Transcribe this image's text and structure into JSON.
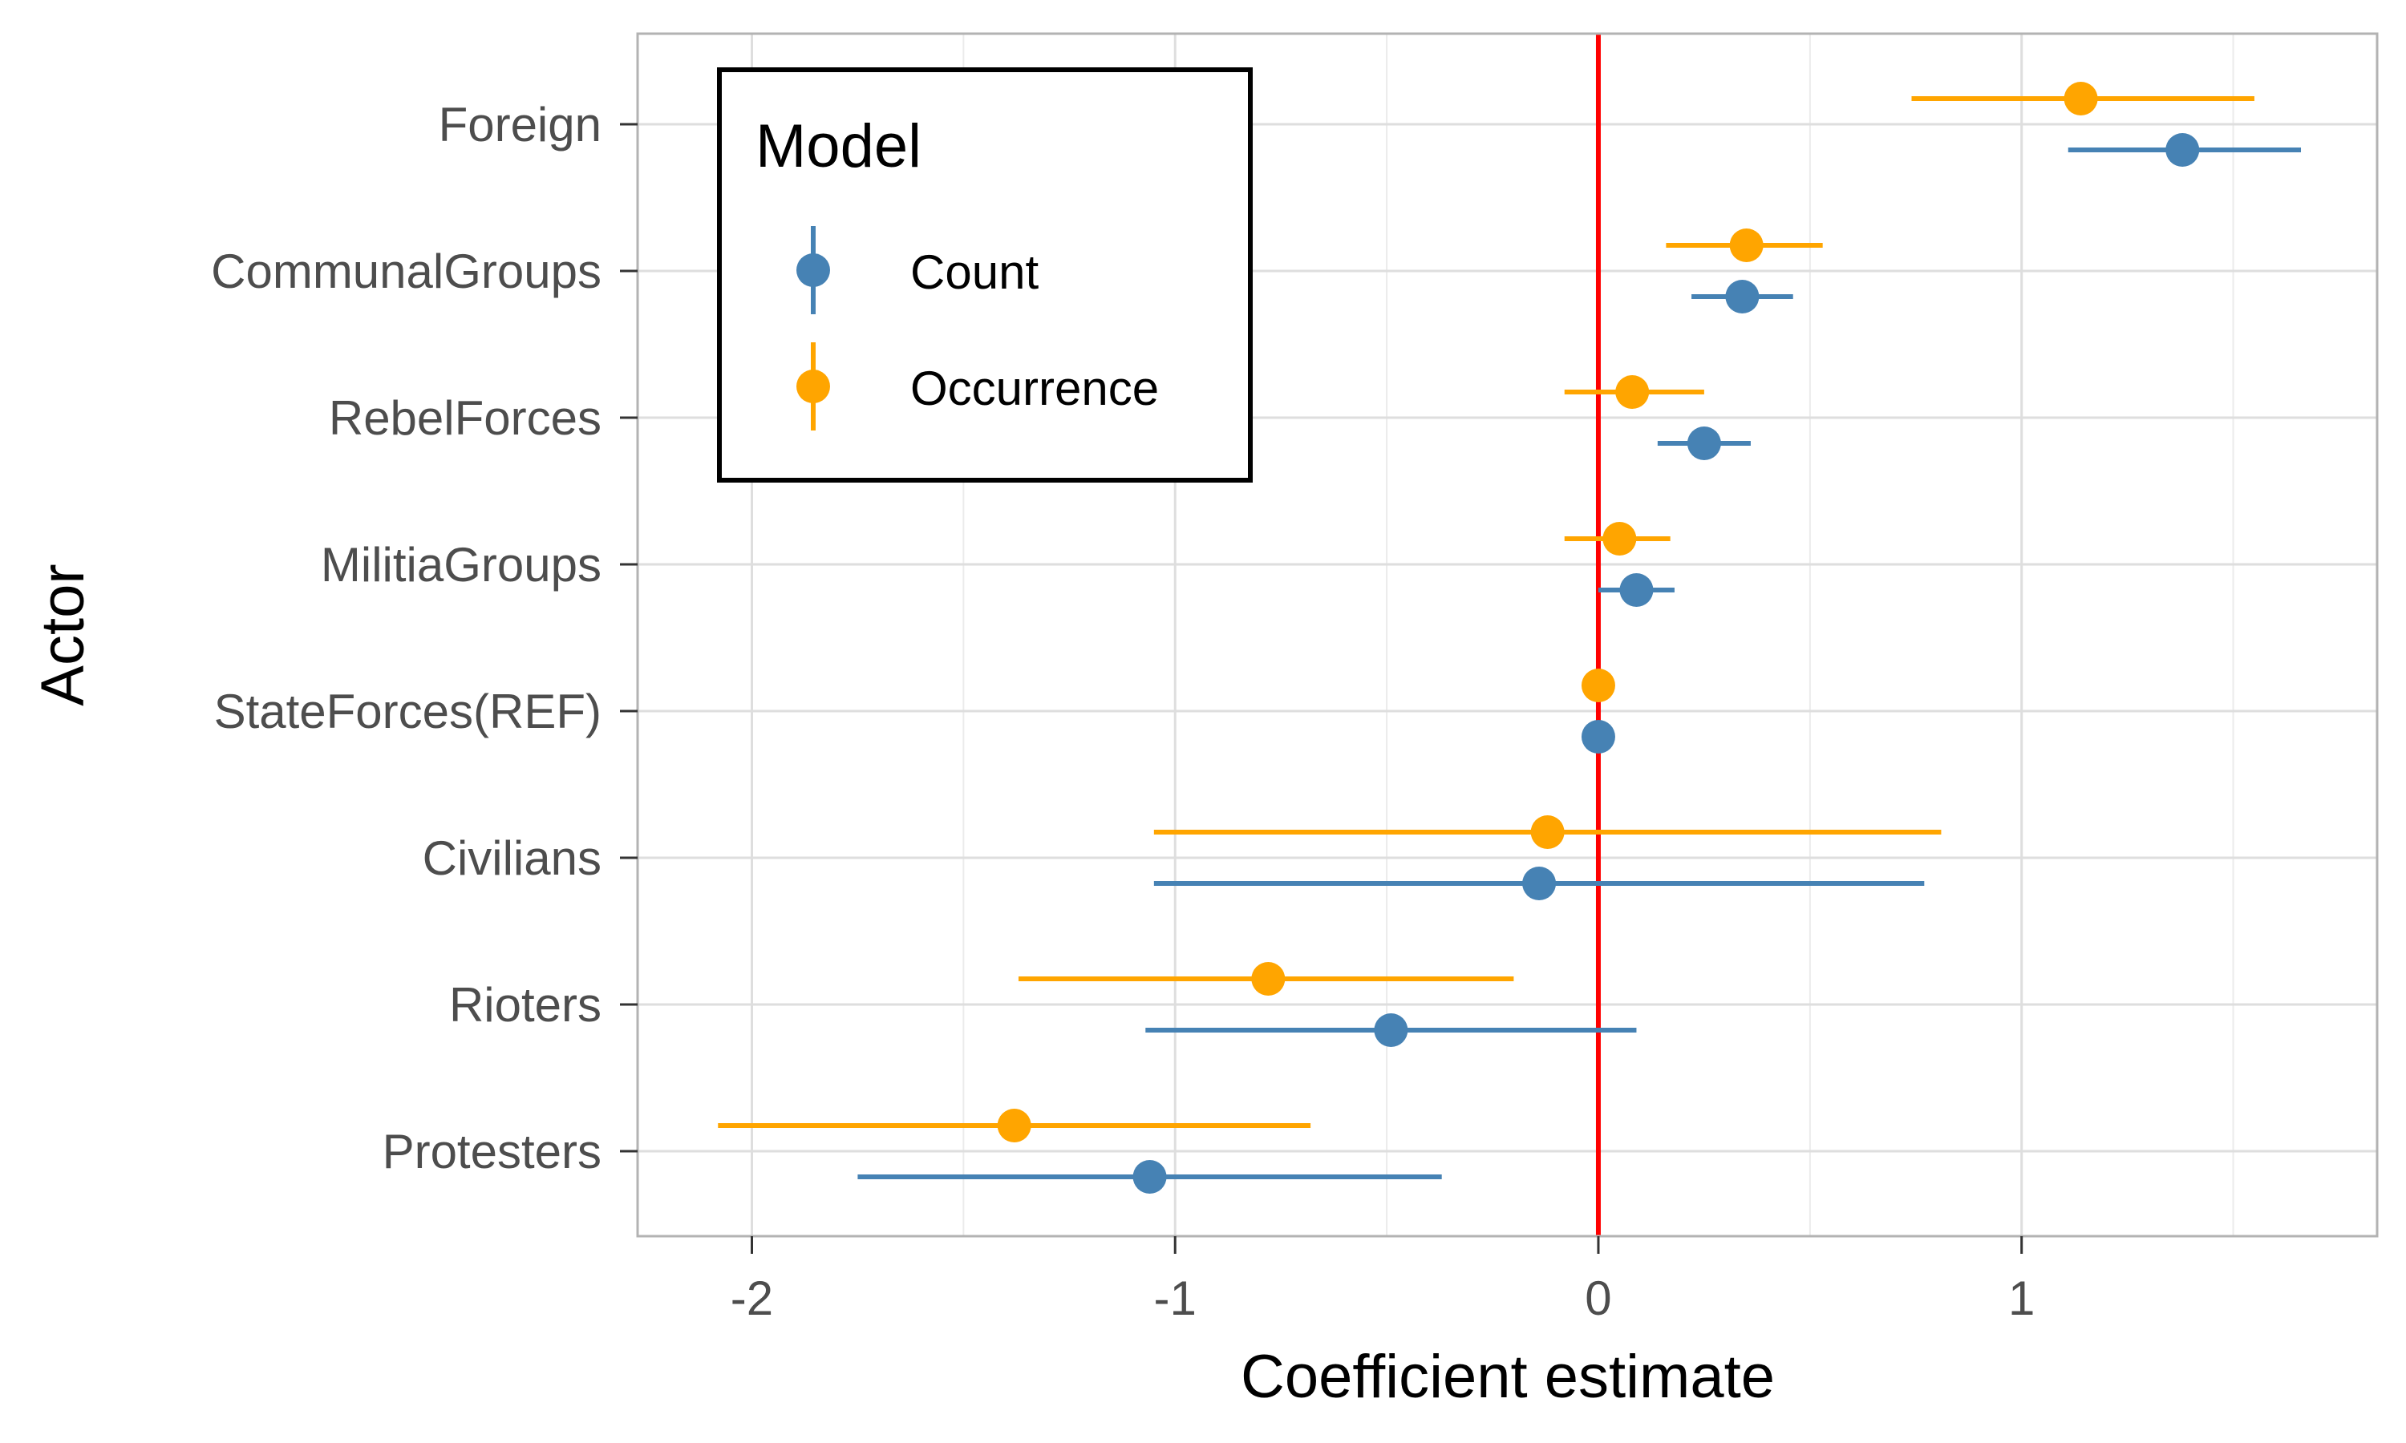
{
  "chart_data": {
    "type": "scatter",
    "subtype": "coefficient-plot-with-error-bars",
    "title": "",
    "xlabel": "Coefficient estimate",
    "ylabel": "Actor",
    "xlim": [
      -2.27,
      1.84
    ],
    "x_ticks": [
      -2,
      -1,
      0,
      1
    ],
    "x_tick_labels": [
      "-2",
      "-1",
      "0",
      "1"
    ],
    "x_minor_ticks": [
      -1.5,
      -0.5,
      0.5,
      1.5
    ],
    "categories": [
      "Foreign",
      "CommunalGroups",
      "RebelForces",
      "MilitiaGroups",
      "StateForces(REF)",
      "Civilians",
      "Rioters",
      "Protesters"
    ],
    "reference_line": {
      "x": 0,
      "color": "#ff0000"
    },
    "grid": true,
    "legend": {
      "title": "Model",
      "position": "top-left"
    },
    "series": [
      {
        "name": "Count",
        "color": "#4682b4",
        "points": [
          {
            "category": "Foreign",
            "estimate": 1.38,
            "lower": 1.11,
            "upper": 1.66
          },
          {
            "category": "CommunalGroups",
            "estimate": 0.34,
            "lower": 0.22,
            "upper": 0.46
          },
          {
            "category": "RebelForces",
            "estimate": 0.25,
            "lower": 0.14,
            "upper": 0.36
          },
          {
            "category": "MilitiaGroups",
            "estimate": 0.09,
            "lower": 0.0,
            "upper": 0.18
          },
          {
            "category": "StateForces(REF)",
            "estimate": 0.0,
            "lower": 0.0,
            "upper": 0.0
          },
          {
            "category": "Civilians",
            "estimate": -0.14,
            "lower": -1.05,
            "upper": 0.77
          },
          {
            "category": "Rioters",
            "estimate": -0.49,
            "lower": -1.07,
            "upper": 0.09
          },
          {
            "category": "Protesters",
            "estimate": -1.06,
            "lower": -1.75,
            "upper": -0.37
          }
        ]
      },
      {
        "name": "Occurrence",
        "color": "#ffa500",
        "points": [
          {
            "category": "Foreign",
            "estimate": 1.14,
            "lower": 0.74,
            "upper": 1.55
          },
          {
            "category": "CommunalGroups",
            "estimate": 0.35,
            "lower": 0.16,
            "upper": 0.53
          },
          {
            "category": "RebelForces",
            "estimate": 0.08,
            "lower": -0.08,
            "upper": 0.25
          },
          {
            "category": "MilitiaGroups",
            "estimate": 0.05,
            "lower": -0.08,
            "upper": 0.17
          },
          {
            "category": "StateForces(REF)",
            "estimate": 0.0,
            "lower": 0.0,
            "upper": 0.0
          },
          {
            "category": "Civilians",
            "estimate": -0.12,
            "lower": -1.05,
            "upper": 0.81
          },
          {
            "category": "Rioters",
            "estimate": -0.78,
            "lower": -1.37,
            "upper": -0.2
          },
          {
            "category": "Protesters",
            "estimate": -1.38,
            "lower": -2.08,
            "upper": -0.68
          }
        ]
      }
    ]
  }
}
